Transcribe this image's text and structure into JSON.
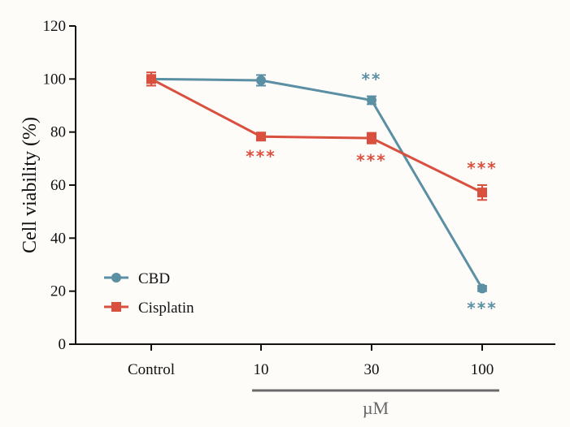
{
  "chart_data": {
    "type": "line",
    "title": "",
    "xlabel": "µM",
    "ylabel": "Cell viability (%)",
    "categories": [
      "Control",
      "10",
      "30",
      "100"
    ],
    "ylim": [
      0,
      120
    ],
    "yticks": [
      "0",
      "20",
      "40",
      "60",
      "80",
      "100",
      "120"
    ],
    "grid": false,
    "legend_position": "bottom-left",
    "series": [
      {
        "name": "CBD",
        "color": "#5b8fa3",
        "marker": "circle",
        "values": [
          100,
          99.5,
          92,
          21
        ],
        "errors": [
          1.5,
          2.0,
          1.5,
          1.0
        ],
        "significance": [
          "",
          "",
          "**",
          "***"
        ],
        "sig_placement": [
          "",
          "",
          "above",
          "below"
        ]
      },
      {
        "name": "Cisplatin",
        "color": "#d9503f",
        "marker": "square",
        "values": [
          100,
          78.3,
          77.7,
          57.2
        ],
        "errors": [
          2.5,
          1.0,
          2.0,
          2.8
        ],
        "significance": [
          "",
          "***",
          "***",
          "***"
        ],
        "sig_placement": [
          "",
          "below",
          "below",
          "above"
        ]
      }
    ]
  }
}
